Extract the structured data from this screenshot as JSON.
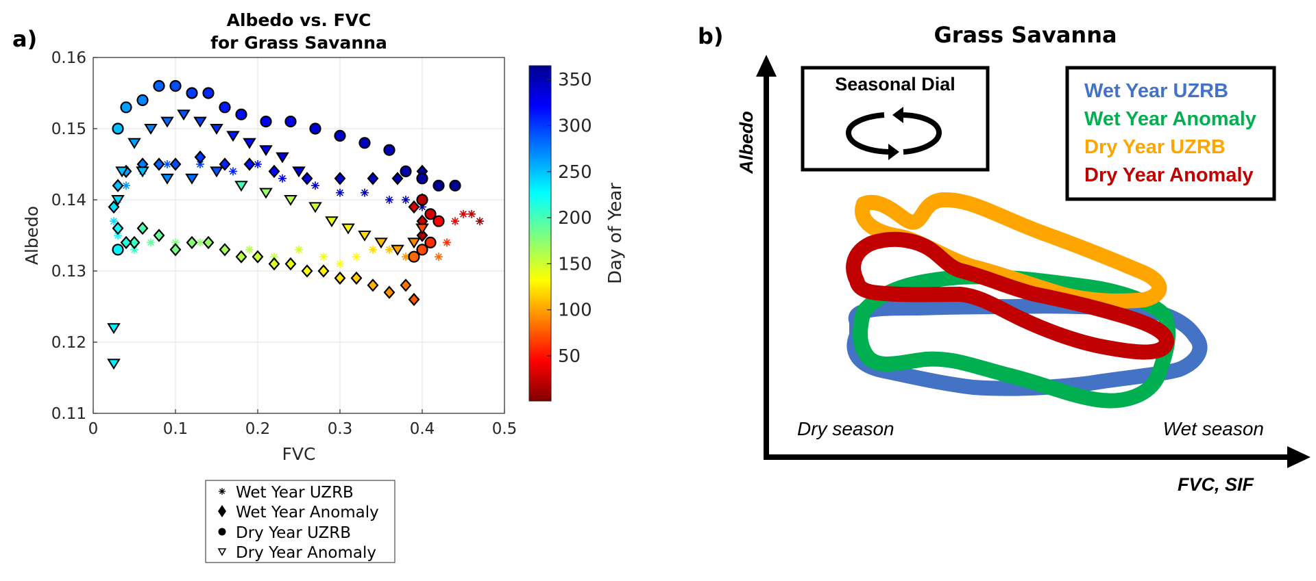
{
  "panel_a": {
    "letter": "a)",
    "chart_data": {
      "type": "scatter",
      "title": [
        "Albedo vs. FVC",
        "for Grass Savanna"
      ],
      "xlabel": "FVC",
      "ylabel": "Albedo",
      "xlim": [
        0,
        0.5
      ],
      "ylim": [
        0.11,
        0.16
      ],
      "xticks": [
        0,
        0.1,
        0.2,
        0.3,
        0.4,
        0.5
      ],
      "xtick_labels": [
        "0",
        "0.1",
        "0.2",
        "0.3",
        "0.4",
        "0.5"
      ],
      "yticks": [
        0.11,
        0.12,
        0.13,
        0.14,
        0.15,
        0.16
      ],
      "ytick_labels": [
        "0.11",
        "0.12",
        "0.13",
        "0.14",
        "0.15",
        "0.16"
      ],
      "grid": true,
      "colorbar": {
        "label": "Day of Year",
        "range": [
          1,
          365
        ],
        "ticks": [
          50,
          100,
          150,
          200,
          250,
          300,
          350
        ],
        "tick_labels": [
          "50",
          "100",
          "150",
          "200",
          "250",
          "300",
          "350"
        ],
        "colormap": "jet-reversed"
      },
      "legend": {
        "placement": "below",
        "entries": [
          "Wet Year UZRB",
          "Wet Year Anomaly",
          "Dry Year UZRB",
          "Dry Year Anomaly"
        ]
      },
      "series": [
        {
          "name": "Wet Year UZRB",
          "marker": "asterisk",
          "points": [
            [
              0.47,
              0.137,
              10
            ],
            [
              0.46,
              0.138,
              20
            ],
            [
              0.45,
              0.138,
              30
            ],
            [
              0.44,
              0.137,
              40
            ],
            [
              0.43,
              0.134,
              60
            ],
            [
              0.42,
              0.132,
              80
            ],
            [
              0.4,
              0.133,
              90
            ],
            [
              0.38,
              0.132,
              95
            ],
            [
              0.36,
              0.133,
              110
            ],
            [
              0.34,
              0.133,
              120
            ],
            [
              0.32,
              0.132,
              130
            ],
            [
              0.3,
              0.131,
              135
            ],
            [
              0.28,
              0.132,
              140
            ],
            [
              0.25,
              0.133,
              148
            ],
            [
              0.22,
              0.132,
              155
            ],
            [
              0.19,
              0.133,
              160
            ],
            [
              0.16,
              0.133,
              165
            ],
            [
              0.13,
              0.134,
              172
            ],
            [
              0.1,
              0.134,
              180
            ],
            [
              0.07,
              0.134,
              190
            ],
            [
              0.05,
              0.133,
              205
            ],
            [
              0.03,
              0.135,
              225
            ],
            [
              0.025,
              0.137,
              240
            ],
            [
              0.03,
              0.14,
              255
            ],
            [
              0.04,
              0.142,
              265
            ],
            [
              0.06,
              0.144,
              275
            ],
            [
              0.09,
              0.145,
              290
            ],
            [
              0.13,
              0.145,
              300
            ],
            [
              0.17,
              0.144,
              310
            ],
            [
              0.2,
              0.145,
              318
            ],
            [
              0.23,
              0.143,
              325
            ],
            [
              0.27,
              0.142,
              335
            ],
            [
              0.3,
              0.141,
              340
            ],
            [
              0.33,
              0.141,
              345
            ],
            [
              0.36,
              0.14,
              350
            ],
            [
              0.38,
              0.14,
              355
            ],
            [
              0.4,
              0.139,
              362
            ]
          ]
        },
        {
          "name": "Wet Year Anomaly",
          "marker": "diamond",
          "points": [
            [
              0.4,
              0.135,
              15
            ],
            [
              0.4,
              0.137,
              25
            ],
            [
              0.39,
              0.139,
              35
            ],
            [
              0.4,
              0.14,
              45
            ],
            [
              0.39,
              0.126,
              75
            ],
            [
              0.38,
              0.128,
              85
            ],
            [
              0.36,
              0.127,
              95
            ],
            [
              0.34,
              0.128,
              105
            ],
            [
              0.32,
              0.129,
              115
            ],
            [
              0.3,
              0.129,
              122
            ],
            [
              0.28,
              0.13,
              128
            ],
            [
              0.26,
              0.13,
              133
            ],
            [
              0.24,
              0.131,
              140
            ],
            [
              0.22,
              0.131,
              146
            ],
            [
              0.2,
              0.132,
              152
            ],
            [
              0.18,
              0.132,
              158
            ],
            [
              0.16,
              0.133,
              164
            ],
            [
              0.14,
              0.134,
              170
            ],
            [
              0.12,
              0.134,
              176
            ],
            [
              0.1,
              0.133,
              182
            ],
            [
              0.08,
              0.135,
              190
            ],
            [
              0.06,
              0.136,
              198
            ],
            [
              0.05,
              0.134,
              206
            ],
            [
              0.04,
              0.134,
              214
            ],
            [
              0.03,
              0.136,
              225
            ],
            [
              0.025,
              0.139,
              238
            ],
            [
              0.03,
              0.142,
              250
            ],
            [
              0.04,
              0.144,
              262
            ],
            [
              0.06,
              0.145,
              275
            ],
            [
              0.08,
              0.145,
              285
            ],
            [
              0.1,
              0.145,
              292
            ],
            [
              0.13,
              0.146,
              300
            ],
            [
              0.16,
              0.145,
              308
            ],
            [
              0.19,
              0.145,
              316
            ],
            [
              0.22,
              0.144,
              324
            ],
            [
              0.26,
              0.143,
              332
            ],
            [
              0.3,
              0.143,
              340
            ],
            [
              0.34,
              0.143,
              346
            ],
            [
              0.37,
              0.143,
              352
            ],
            [
              0.4,
              0.144,
              358
            ]
          ]
        },
        {
          "name": "Dry Year UZRB",
          "marker": "circle",
          "points": [
            [
              0.03,
              0.133,
              230
            ],
            [
              0.03,
              0.15,
              250
            ],
            [
              0.04,
              0.153,
              262
            ],
            [
              0.06,
              0.154,
              272
            ],
            [
              0.08,
              0.156,
              285
            ],
            [
              0.1,
              0.156,
              292
            ],
            [
              0.12,
              0.155,
              300
            ],
            [
              0.14,
              0.155,
              306
            ],
            [
              0.16,
              0.153,
              312
            ],
            [
              0.18,
              0.152,
              318
            ],
            [
              0.21,
              0.151,
              324
            ],
            [
              0.24,
              0.151,
              330
            ],
            [
              0.27,
              0.15,
              336
            ],
            [
              0.3,
              0.149,
              342
            ],
            [
              0.33,
              0.148,
              346
            ],
            [
              0.36,
              0.147,
              350
            ],
            [
              0.38,
              0.144,
              354
            ],
            [
              0.4,
              0.143,
              358
            ],
            [
              0.42,
              0.142,
              362
            ],
            [
              0.44,
              0.142,
              364
            ],
            [
              0.4,
              0.14,
              20
            ],
            [
              0.41,
              0.138,
              30
            ],
            [
              0.42,
              0.137,
              45
            ],
            [
              0.41,
              0.134,
              60
            ],
            [
              0.4,
              0.133,
              70
            ],
            [
              0.39,
              0.132,
              80
            ]
          ]
        },
        {
          "name": "Dry Year Anomaly",
          "marker": "triangle-down",
          "points": [
            [
              0.025,
              0.122,
              230
            ],
            [
              0.025,
              0.117,
              232
            ],
            [
              0.03,
              0.14,
              240
            ],
            [
              0.035,
              0.144,
              250
            ],
            [
              0.05,
              0.148,
              262
            ],
            [
              0.07,
              0.15,
              272
            ],
            [
              0.09,
              0.151,
              282
            ],
            [
              0.11,
              0.152,
              290
            ],
            [
              0.13,
              0.151,
              298
            ],
            [
              0.15,
              0.15,
              306
            ],
            [
              0.17,
              0.149,
              312
            ],
            [
              0.19,
              0.148,
              318
            ],
            [
              0.21,
              0.147,
              324
            ],
            [
              0.23,
              0.146,
              330
            ],
            [
              0.25,
              0.144,
              334
            ],
            [
              0.06,
              0.144,
              252
            ],
            [
              0.09,
              0.143,
              270
            ],
            [
              0.12,
              0.143,
              280
            ],
            [
              0.15,
              0.144,
              290
            ],
            [
              0.18,
              0.142,
              200
            ],
            [
              0.21,
              0.141,
              170
            ],
            [
              0.24,
              0.14,
              160
            ],
            [
              0.27,
              0.139,
              150
            ],
            [
              0.29,
              0.137,
              140
            ],
            [
              0.31,
              0.136,
              130
            ],
            [
              0.33,
              0.135,
              120
            ],
            [
              0.35,
              0.134,
              110
            ],
            [
              0.37,
              0.133,
              100
            ],
            [
              0.39,
              0.134,
              90
            ],
            [
              0.4,
              0.136,
              70
            ]
          ]
        }
      ]
    }
  },
  "panel_b": {
    "letter": "b)",
    "title": "Grass Savanna",
    "dial_label": "Seasonal Dial",
    "y_axis_label": "Albedo",
    "x_axis_label": "FVC, SIF",
    "dry_season": "Dry season",
    "wet_season": "Wet season",
    "legend": [
      {
        "label": "Wet Year UZRB",
        "color": "#4472c4"
      },
      {
        "label": "Wet Year Anomaly",
        "color": "#00b050"
      },
      {
        "label": "Dry Year UZRB",
        "color": "#ffa500"
      },
      {
        "label": "Dry Year Anomaly",
        "color": "#c00000"
      }
    ]
  }
}
